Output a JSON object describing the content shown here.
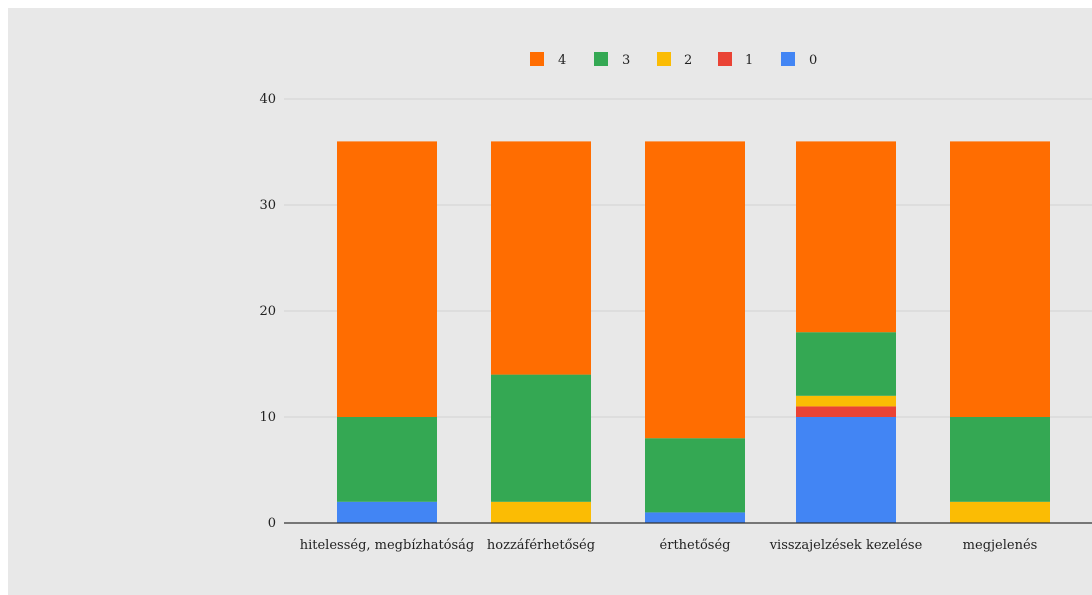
{
  "chart_data": {
    "type": "bar",
    "stacked": true,
    "title": "",
    "xlabel": "",
    "ylabel": "",
    "ylim": [
      0,
      40
    ],
    "yticks": [
      0,
      10,
      20,
      30,
      40
    ],
    "grid": true,
    "legend_position": "top",
    "categories": [
      "hitelesség, megbízhatóság",
      "hozzáférhetőség",
      "érthetőség",
      "visszajelzések kezelése",
      "megjelenés"
    ],
    "series": [
      {
        "name": "0",
        "color": "#4285f4",
        "values": [
          2,
          0,
          1,
          10,
          0
        ]
      },
      {
        "name": "1",
        "color": "#ea4335",
        "values": [
          0,
          0,
          0,
          1,
          0
        ]
      },
      {
        "name": "2",
        "color": "#fbbc04",
        "values": [
          0,
          2,
          0,
          1,
          2
        ]
      },
      {
        "name": "3",
        "color": "#34a853",
        "values": [
          8,
          12,
          7,
          6,
          8
        ]
      },
      {
        "name": "4",
        "color": "#ff6d01",
        "values": [
          26,
          22,
          28,
          18,
          26
        ]
      }
    ],
    "legend_order": [
      "4",
      "3",
      "2",
      "1",
      "0"
    ]
  }
}
